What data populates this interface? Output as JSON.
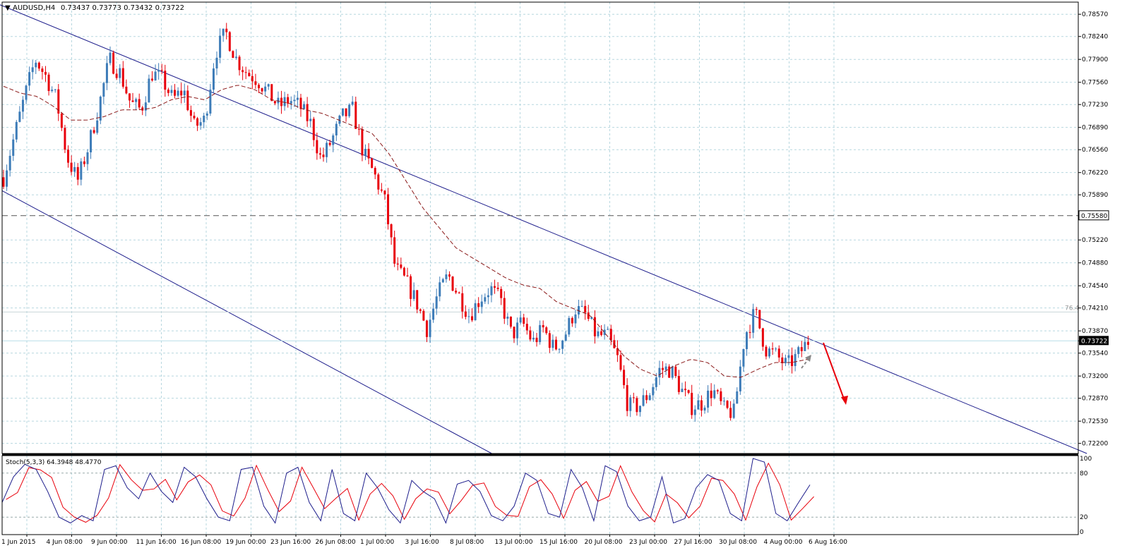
{
  "header": {
    "symbol": "AUDUSD,H4",
    "ohlc": "0.73437 0.73773 0.73432 0.73722",
    "arrow_glyph": "▼"
  },
  "colors": {
    "bull": "#3d7cb8",
    "bear": "#e8000b",
    "ma": "#8b1a1a",
    "channel": "#1e1e8c",
    "grid": "#b7d7df",
    "stoch_main": "#1e1e8c",
    "stoch_signal": "#e8000b"
  },
  "chart_data": [
    {
      "type": "candlestick",
      "title": "AUDUSD,H4",
      "ylim": [
        0.7205,
        0.7875
      ],
      "y_ticks": [
        "0.78570",
        "0.78240",
        "0.77900",
        "0.77560",
        "0.77230",
        "0.76890",
        "0.76560",
        "0.76220",
        "0.75890",
        "0.75580",
        "0.75220",
        "0.74880",
        "0.74540",
        "0.74210",
        "0.73870",
        "0.73722",
        "0.73540",
        "0.73200",
        "0.72870",
        "0.72530",
        "0.72200"
      ],
      "x_labels": [
        "1 Jun 2015",
        "4 Jun 08:00",
        "9 Jun 00:00",
        "11 Jun 16:00",
        "16 Jun 08:00",
        "19 Jun 00:00",
        "23 Jun 16:00",
        "26 Jun 08:00",
        "1 Jul 00:00",
        "3 Jul 16:00",
        "8 Jul 08:00",
        "13 Jul 00:00",
        "15 Jul 16:00",
        "20 Jul 08:00",
        "23 Jul 00:00",
        "27 Jul 16:00",
        "30 Jul 08:00",
        "4 Aug 00:00",
        "6 Aug 16:00"
      ],
      "current_price": "0.73722",
      "horizontal_level": "0.75580",
      "fib_label": "76.4",
      "fib_level": 0.7415,
      "trend": [
        0.7615,
        0.7675,
        0.7735,
        0.779,
        0.7765,
        0.773,
        0.7645,
        0.761,
        0.766,
        0.772,
        0.779,
        0.777,
        0.7725,
        0.7715,
        0.777,
        0.776,
        0.773,
        0.7745,
        0.769,
        0.77,
        0.78,
        0.783,
        0.779,
        0.777,
        0.776,
        0.774,
        0.772,
        0.773,
        0.772,
        0.7695,
        0.764,
        0.767,
        0.7705,
        0.7715,
        0.765,
        0.762,
        0.758,
        0.748,
        0.746,
        0.743,
        0.739,
        0.744,
        0.747,
        0.744,
        0.741,
        0.7435,
        0.745,
        0.743,
        0.738,
        0.74,
        0.737,
        0.739,
        0.736,
        0.738,
        0.742,
        0.741,
        0.738,
        0.738,
        0.7345,
        0.7275,
        0.7275,
        0.7295,
        0.733,
        0.733,
        0.73,
        0.7275,
        0.728,
        0.73,
        0.727,
        0.7265,
        0.738,
        0.7415,
        0.736,
        0.735,
        0.7335,
        0.735,
        0.7372
      ],
      "ma_trend": [
        0.775,
        0.774,
        0.7735,
        0.772,
        0.77,
        0.77,
        0.7705,
        0.7715,
        0.7715,
        0.7718,
        0.773,
        0.7735,
        0.773,
        0.7745,
        0.7752,
        0.7745,
        0.773,
        0.7725,
        0.7715,
        0.771,
        0.77,
        0.769,
        0.768,
        0.765,
        0.761,
        0.757,
        0.754,
        0.751,
        0.7495,
        0.748,
        0.7465,
        0.7455,
        0.745,
        0.743,
        0.742,
        0.741,
        0.738,
        0.735,
        0.733,
        0.732,
        0.7335,
        0.7345,
        0.734,
        0.732,
        0.7318,
        0.733,
        0.734,
        0.734,
        0.7345
      ],
      "channel_upper": [
        [
          0.7875,
          -0.008
        ],
        [
          0.7205,
          1.008
        ]
      ],
      "channel_lower": [
        [
          0.7595,
          0.0
        ],
        [
          0.7205,
          0.455
        ]
      ],
      "stoch_label": "Stoch(5,3,3) 64.3948 48.4770",
      "stoch_ylim": [
        0,
        100
      ],
      "stoch_ticks": [
        "100",
        "80",
        "20",
        "0"
      ],
      "stoch_levels": [
        80,
        20
      ],
      "stoch_values": [
        40,
        75,
        92,
        85,
        55,
        20,
        12,
        22,
        15,
        85,
        90,
        60,
        45,
        80,
        55,
        40,
        88,
        75,
        45,
        20,
        15,
        85,
        88,
        35,
        12,
        80,
        88,
        40,
        15,
        85,
        25,
        15,
        80,
        60,
        30,
        12,
        70,
        55,
        45,
        12,
        65,
        70,
        55,
        22,
        15,
        35,
        80,
        70,
        25,
        20,
        85,
        60,
        15,
        90,
        82,
        35,
        15,
        20,
        75,
        12,
        18,
        60,
        78,
        70,
        25,
        15,
        100,
        95,
        25,
        15,
        40,
        64
      ]
    }
  ]
}
